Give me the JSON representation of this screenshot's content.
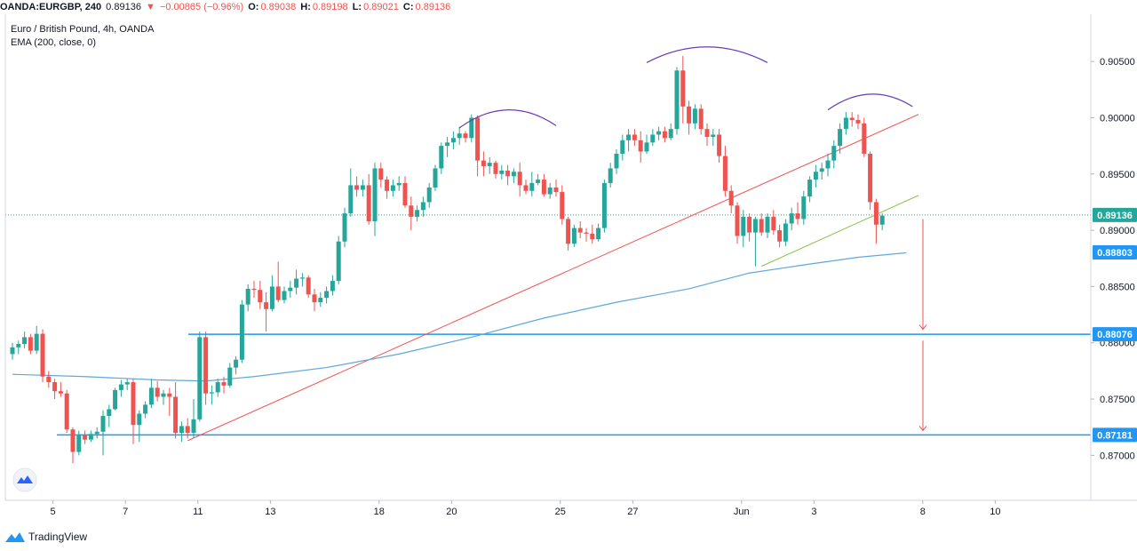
{
  "header": {
    "symbol": "OANDA:EURGBP, 240",
    "last": "0.89136",
    "change": "−0.00865 (−0.96%)",
    "o_label": "O:",
    "o": "0.89038",
    "h_label": "H:",
    "h": "0.89198",
    "l_label": "L:",
    "l": "0.89021",
    "c_label": "C:",
    "c": "0.89136"
  },
  "legend": {
    "title": "Euro / British Pound, 4h, OANDA",
    "indicator": "EMA (200, close, 0)"
  },
  "footer": {
    "brand": "TradingView"
  },
  "colors": {
    "up": "#26a69a",
    "down": "#ef5350",
    "ema": "#5ea8d9",
    "level": "#2196f3",
    "trend": "#ef5350",
    "trend2": "#8bc34a",
    "arc": "#673ab7"
  },
  "chart_data": {
    "type": "candlestick",
    "title": "Euro / British Pound, 4h, OANDA",
    "ylim": [
      0.866,
      0.9092
    ],
    "yticks": [
      "0.90500",
      "0.90000",
      "0.89500",
      "0.89000",
      "0.88500",
      "0.88000",
      "0.87500",
      "0.87000"
    ],
    "xticks": [
      "5",
      "7",
      "11",
      "13",
      "18",
      "20",
      "25",
      "27",
      "Jun",
      "3",
      "8",
      "10"
    ],
    "price_labels": [
      {
        "value": 0.89136,
        "text": "0.89136",
        "color": "#26a69a"
      },
      {
        "value": 0.88803,
        "text": "0.88803",
        "color": "#2196f3"
      },
      {
        "value": 0.88076,
        "text": "0.88076",
        "color": "#2196f3"
      },
      {
        "value": 0.87181,
        "text": "0.87181",
        "color": "#2196f3"
      }
    ],
    "levels": [
      0.88076,
      0.87181
    ],
    "candles": [
      [
        0.879,
        0.88,
        0.8785,
        0.8796
      ],
      [
        0.8796,
        0.8802,
        0.879,
        0.8799
      ],
      [
        0.8799,
        0.881,
        0.8795,
        0.8805
      ],
      [
        0.8805,
        0.8808,
        0.879,
        0.8793
      ],
      [
        0.8793,
        0.8815,
        0.879,
        0.8808
      ],
      [
        0.8808,
        0.8812,
        0.8765,
        0.877
      ],
      [
        0.877,
        0.8775,
        0.876,
        0.8765
      ],
      [
        0.8765,
        0.8768,
        0.875,
        0.8757
      ],
      [
        0.8757,
        0.8765,
        0.8752,
        0.8755
      ],
      [
        0.8755,
        0.8758,
        0.872,
        0.8723
      ],
      [
        0.8723,
        0.8725,
        0.8693,
        0.8703
      ],
      [
        0.8703,
        0.8722,
        0.87,
        0.8718
      ],
      [
        0.8718,
        0.8722,
        0.871,
        0.8714
      ],
      [
        0.8714,
        0.8722,
        0.8712,
        0.8719
      ],
      [
        0.8719,
        0.8725,
        0.8715,
        0.8721
      ],
      [
        0.8721,
        0.874,
        0.87,
        0.8735
      ],
      [
        0.8735,
        0.8745,
        0.8725,
        0.8741
      ],
      [
        0.8741,
        0.876,
        0.874,
        0.8758
      ],
      [
        0.8758,
        0.8767,
        0.8752,
        0.8763
      ],
      [
        0.8763,
        0.8768,
        0.8758,
        0.8765
      ],
      [
        0.8765,
        0.8768,
        0.871,
        0.8727
      ],
      [
        0.8727,
        0.874,
        0.8712,
        0.8737
      ],
      [
        0.8737,
        0.8748,
        0.8733,
        0.8745
      ],
      [
        0.8745,
        0.8768,
        0.8742,
        0.876
      ],
      [
        0.876,
        0.8766,
        0.8748,
        0.8752
      ],
      [
        0.8752,
        0.8758,
        0.8745,
        0.8755
      ],
      [
        0.8755,
        0.876,
        0.8735,
        0.8752
      ],
      [
        0.8752,
        0.8765,
        0.8715,
        0.872
      ],
      [
        0.872,
        0.873,
        0.8712,
        0.8726
      ],
      [
        0.8726,
        0.8733,
        0.8715,
        0.872
      ],
      [
        0.872,
        0.875,
        0.8715,
        0.8732
      ],
      [
        0.8732,
        0.881,
        0.873,
        0.8805
      ],
      [
        0.8805,
        0.881,
        0.8745,
        0.8755
      ],
      [
        0.8755,
        0.8762,
        0.8745,
        0.8756
      ],
      [
        0.8756,
        0.8768,
        0.8752,
        0.8765
      ],
      [
        0.8765,
        0.877,
        0.8755,
        0.8762
      ],
      [
        0.8762,
        0.8782,
        0.876,
        0.8778
      ],
      [
        0.8778,
        0.8788,
        0.8772,
        0.8785
      ],
      [
        0.8785,
        0.8838,
        0.8782,
        0.8834
      ],
      [
        0.8834,
        0.8852,
        0.8828,
        0.8848
      ],
      [
        0.8848,
        0.8855,
        0.884,
        0.8847
      ],
      [
        0.8847,
        0.8855,
        0.883,
        0.8836
      ],
      [
        0.8836,
        0.8845,
        0.881,
        0.883
      ],
      [
        0.883,
        0.886,
        0.8828,
        0.885
      ],
      [
        0.885,
        0.8872,
        0.8836,
        0.8838
      ],
      [
        0.8838,
        0.885,
        0.8835,
        0.8846
      ],
      [
        0.8846,
        0.8855,
        0.884,
        0.8849
      ],
      [
        0.8849,
        0.8865,
        0.8843,
        0.8857
      ],
      [
        0.8857,
        0.8862,
        0.885,
        0.8858
      ],
      [
        0.8858,
        0.886,
        0.884,
        0.8843
      ],
      [
        0.8843,
        0.8848,
        0.8828,
        0.8836
      ],
      [
        0.8836,
        0.8845,
        0.8832,
        0.884
      ],
      [
        0.884,
        0.885,
        0.8835,
        0.8846
      ],
      [
        0.8846,
        0.886,
        0.8842,
        0.8855
      ],
      [
        0.8855,
        0.8895,
        0.8852,
        0.889
      ],
      [
        0.889,
        0.892,
        0.8885,
        0.8915
      ],
      [
        0.8915,
        0.8955,
        0.8912,
        0.894
      ],
      [
        0.894,
        0.8948,
        0.893,
        0.8936
      ],
      [
        0.8936,
        0.8945,
        0.893,
        0.894
      ],
      [
        0.894,
        0.895,
        0.8905,
        0.8908
      ],
      [
        0.8908,
        0.896,
        0.8895,
        0.8955
      ],
      [
        0.8955,
        0.896,
        0.8938,
        0.8945
      ],
      [
        0.8945,
        0.8948,
        0.8928,
        0.8935
      ],
      [
        0.8935,
        0.8945,
        0.893,
        0.894
      ],
      [
        0.894,
        0.8948,
        0.8935,
        0.8942
      ],
      [
        0.8942,
        0.8948,
        0.892,
        0.8922
      ],
      [
        0.8922,
        0.893,
        0.89,
        0.8912
      ],
      [
        0.8912,
        0.8922,
        0.8908,
        0.8918
      ],
      [
        0.8918,
        0.893,
        0.8912,
        0.8925
      ],
      [
        0.8925,
        0.8942,
        0.892,
        0.8938
      ],
      [
        0.8938,
        0.8958,
        0.8935,
        0.8955
      ],
      [
        0.8955,
        0.8978,
        0.895,
        0.8975
      ],
      [
        0.8975,
        0.8983,
        0.8965,
        0.8978
      ],
      [
        0.8978,
        0.8988,
        0.8972,
        0.8982
      ],
      [
        0.8982,
        0.8992,
        0.8976,
        0.8986
      ],
      [
        0.8986,
        0.8988,
        0.8978,
        0.8982
      ],
      [
        0.8982,
        0.9003,
        0.8978,
        0.9
      ],
      [
        0.9,
        0.9002,
        0.8948,
        0.8962
      ],
      [
        0.8962,
        0.897,
        0.8948,
        0.8957
      ],
      [
        0.8957,
        0.8965,
        0.895,
        0.896
      ],
      [
        0.896,
        0.8962,
        0.8946,
        0.895
      ],
      [
        0.895,
        0.8958,
        0.8945,
        0.8953
      ],
      [
        0.8953,
        0.8958,
        0.894,
        0.8948
      ],
      [
        0.8948,
        0.8955,
        0.8942,
        0.8952
      ],
      [
        0.8952,
        0.896,
        0.893,
        0.894
      ],
      [
        0.894,
        0.8945,
        0.8932,
        0.8935
      ],
      [
        0.8935,
        0.8952,
        0.893,
        0.8942
      ],
      [
        0.8942,
        0.895,
        0.894,
        0.8945
      ],
      [
        0.8945,
        0.895,
        0.893,
        0.8932
      ],
      [
        0.8932,
        0.8942,
        0.8928,
        0.8938
      ],
      [
        0.8938,
        0.8945,
        0.893,
        0.8934
      ],
      [
        0.8934,
        0.894,
        0.8905,
        0.891
      ],
      [
        0.891,
        0.8912,
        0.8882,
        0.8888
      ],
      [
        0.8888,
        0.8905,
        0.8885,
        0.8902
      ],
      [
        0.8902,
        0.8908,
        0.8893,
        0.8898
      ],
      [
        0.8898,
        0.8902,
        0.889,
        0.8897
      ],
      [
        0.8897,
        0.8905,
        0.8888,
        0.8892
      ],
      [
        0.8892,
        0.8906,
        0.889,
        0.8902
      ],
      [
        0.8902,
        0.8945,
        0.8898,
        0.8942
      ],
      [
        0.8942,
        0.896,
        0.8938,
        0.8955
      ],
      [
        0.8955,
        0.8972,
        0.895,
        0.8968
      ],
      [
        0.8968,
        0.8985,
        0.8962,
        0.898
      ],
      [
        0.898,
        0.899,
        0.897,
        0.8985
      ],
      [
        0.8985,
        0.899,
        0.8975,
        0.898
      ],
      [
        0.898,
        0.8988,
        0.896,
        0.897
      ],
      [
        0.897,
        0.8985,
        0.8968,
        0.8978
      ],
      [
        0.8978,
        0.899,
        0.8975,
        0.8985
      ],
      [
        0.8985,
        0.8992,
        0.898,
        0.8988
      ],
      [
        0.8988,
        0.8992,
        0.8978,
        0.8982
      ],
      [
        0.8982,
        0.8995,
        0.898,
        0.899
      ],
      [
        0.899,
        0.9045,
        0.8985,
        0.9042
      ],
      [
        0.9042,
        0.9055,
        0.8995,
        0.901
      ],
      [
        0.901,
        0.9015,
        0.8985,
        0.8995
      ],
      [
        0.8995,
        0.9012,
        0.899,
        0.9008
      ],
      [
        0.9008,
        0.9012,
        0.8985,
        0.899
      ],
      [
        0.899,
        0.8995,
        0.8975,
        0.8983
      ],
      [
        0.8983,
        0.899,
        0.8975,
        0.8985
      ],
      [
        0.8985,
        0.899,
        0.896,
        0.8966
      ],
      [
        0.8966,
        0.8975,
        0.893,
        0.8935
      ],
      [
        0.8935,
        0.894,
        0.8915,
        0.8922
      ],
      [
        0.8922,
        0.8925,
        0.8888,
        0.8895
      ],
      [
        0.8895,
        0.8918,
        0.8885,
        0.8912
      ],
      [
        0.8912,
        0.8915,
        0.889,
        0.8898
      ],
      [
        0.8898,
        0.8912,
        0.8868,
        0.891
      ],
      [
        0.891,
        0.8915,
        0.8895,
        0.8898
      ],
      [
        0.8898,
        0.8915,
        0.8893,
        0.8912
      ],
      [
        0.8912,
        0.8918,
        0.8896,
        0.89
      ],
      [
        0.89,
        0.8905,
        0.8885,
        0.889
      ],
      [
        0.889,
        0.891,
        0.8886,
        0.8906
      ],
      [
        0.8906,
        0.892,
        0.89,
        0.8915
      ],
      [
        0.8915,
        0.8925,
        0.8905,
        0.891
      ],
      [
        0.891,
        0.8935,
        0.8905,
        0.893
      ],
      [
        0.893,
        0.8948,
        0.8925,
        0.8945
      ],
      [
        0.8945,
        0.8958,
        0.8938,
        0.8952
      ],
      [
        0.8952,
        0.896,
        0.8945,
        0.8955
      ],
      [
        0.8955,
        0.8968,
        0.8948,
        0.8962
      ],
      [
        0.8962,
        0.898,
        0.8955,
        0.8975
      ],
      [
        0.8975,
        0.8995,
        0.8968,
        0.899
      ],
      [
        0.899,
        0.9005,
        0.8985,
        0.9
      ],
      [
        0.9,
        0.9005,
        0.8992,
        0.8998
      ],
      [
        0.8998,
        0.9003,
        0.899,
        0.8995
      ],
      [
        0.8995,
        0.9,
        0.8965,
        0.8968
      ],
      [
        0.8968,
        0.897,
        0.8918,
        0.8925
      ],
      [
        0.8925,
        0.8928,
        0.8888,
        0.8905
      ],
      [
        0.8905,
        0.8915,
        0.89,
        0.8913
      ]
    ],
    "ema": [
      [
        0,
        0.8772
      ],
      [
        12,
        0.877
      ],
      [
        24,
        0.8767
      ],
      [
        32,
        0.8766
      ],
      [
        40,
        0.877
      ],
      [
        52,
        0.8778
      ],
      [
        64,
        0.879
      ],
      [
        76,
        0.8805
      ],
      [
        88,
        0.8822
      ],
      [
        100,
        0.8836
      ],
      [
        112,
        0.8848
      ],
      [
        122,
        0.8862
      ],
      [
        132,
        0.887
      ],
      [
        140,
        0.8876
      ],
      [
        148,
        0.888
      ]
    ],
    "trendlines": [
      {
        "name": "rising-support",
        "points": [
          [
            29,
            0.8713
          ],
          [
            150,
            0.9003
          ]
        ],
        "color": "trend"
      },
      {
        "name": "short-support",
        "points": [
          [
            124,
            0.8868
          ],
          [
            150,
            0.8931
          ]
        ],
        "color": "trend2"
      }
    ],
    "arcs": [
      {
        "name": "left-shoulder",
        "points": [
          [
            74,
            0.8991
          ],
          [
            82,
            0.9007
          ],
          [
            90,
            0.8993
          ]
        ]
      },
      {
        "name": "head",
        "points": [
          [
            105,
            0.9049
          ],
          [
            115,
            0.9063
          ],
          [
            125,
            0.9049
          ]
        ]
      },
      {
        "name": "right-shoulder",
        "points": [
          [
            135,
            0.9007
          ],
          [
            142,
            0.9021
          ],
          [
            149,
            0.901
          ]
        ]
      }
    ],
    "arrows": [
      {
        "x": 150,
        "from": 0.891,
        "to": 0.8812
      },
      {
        "x": 150,
        "from": 0.8802,
        "to": 0.8722
      }
    ]
  }
}
